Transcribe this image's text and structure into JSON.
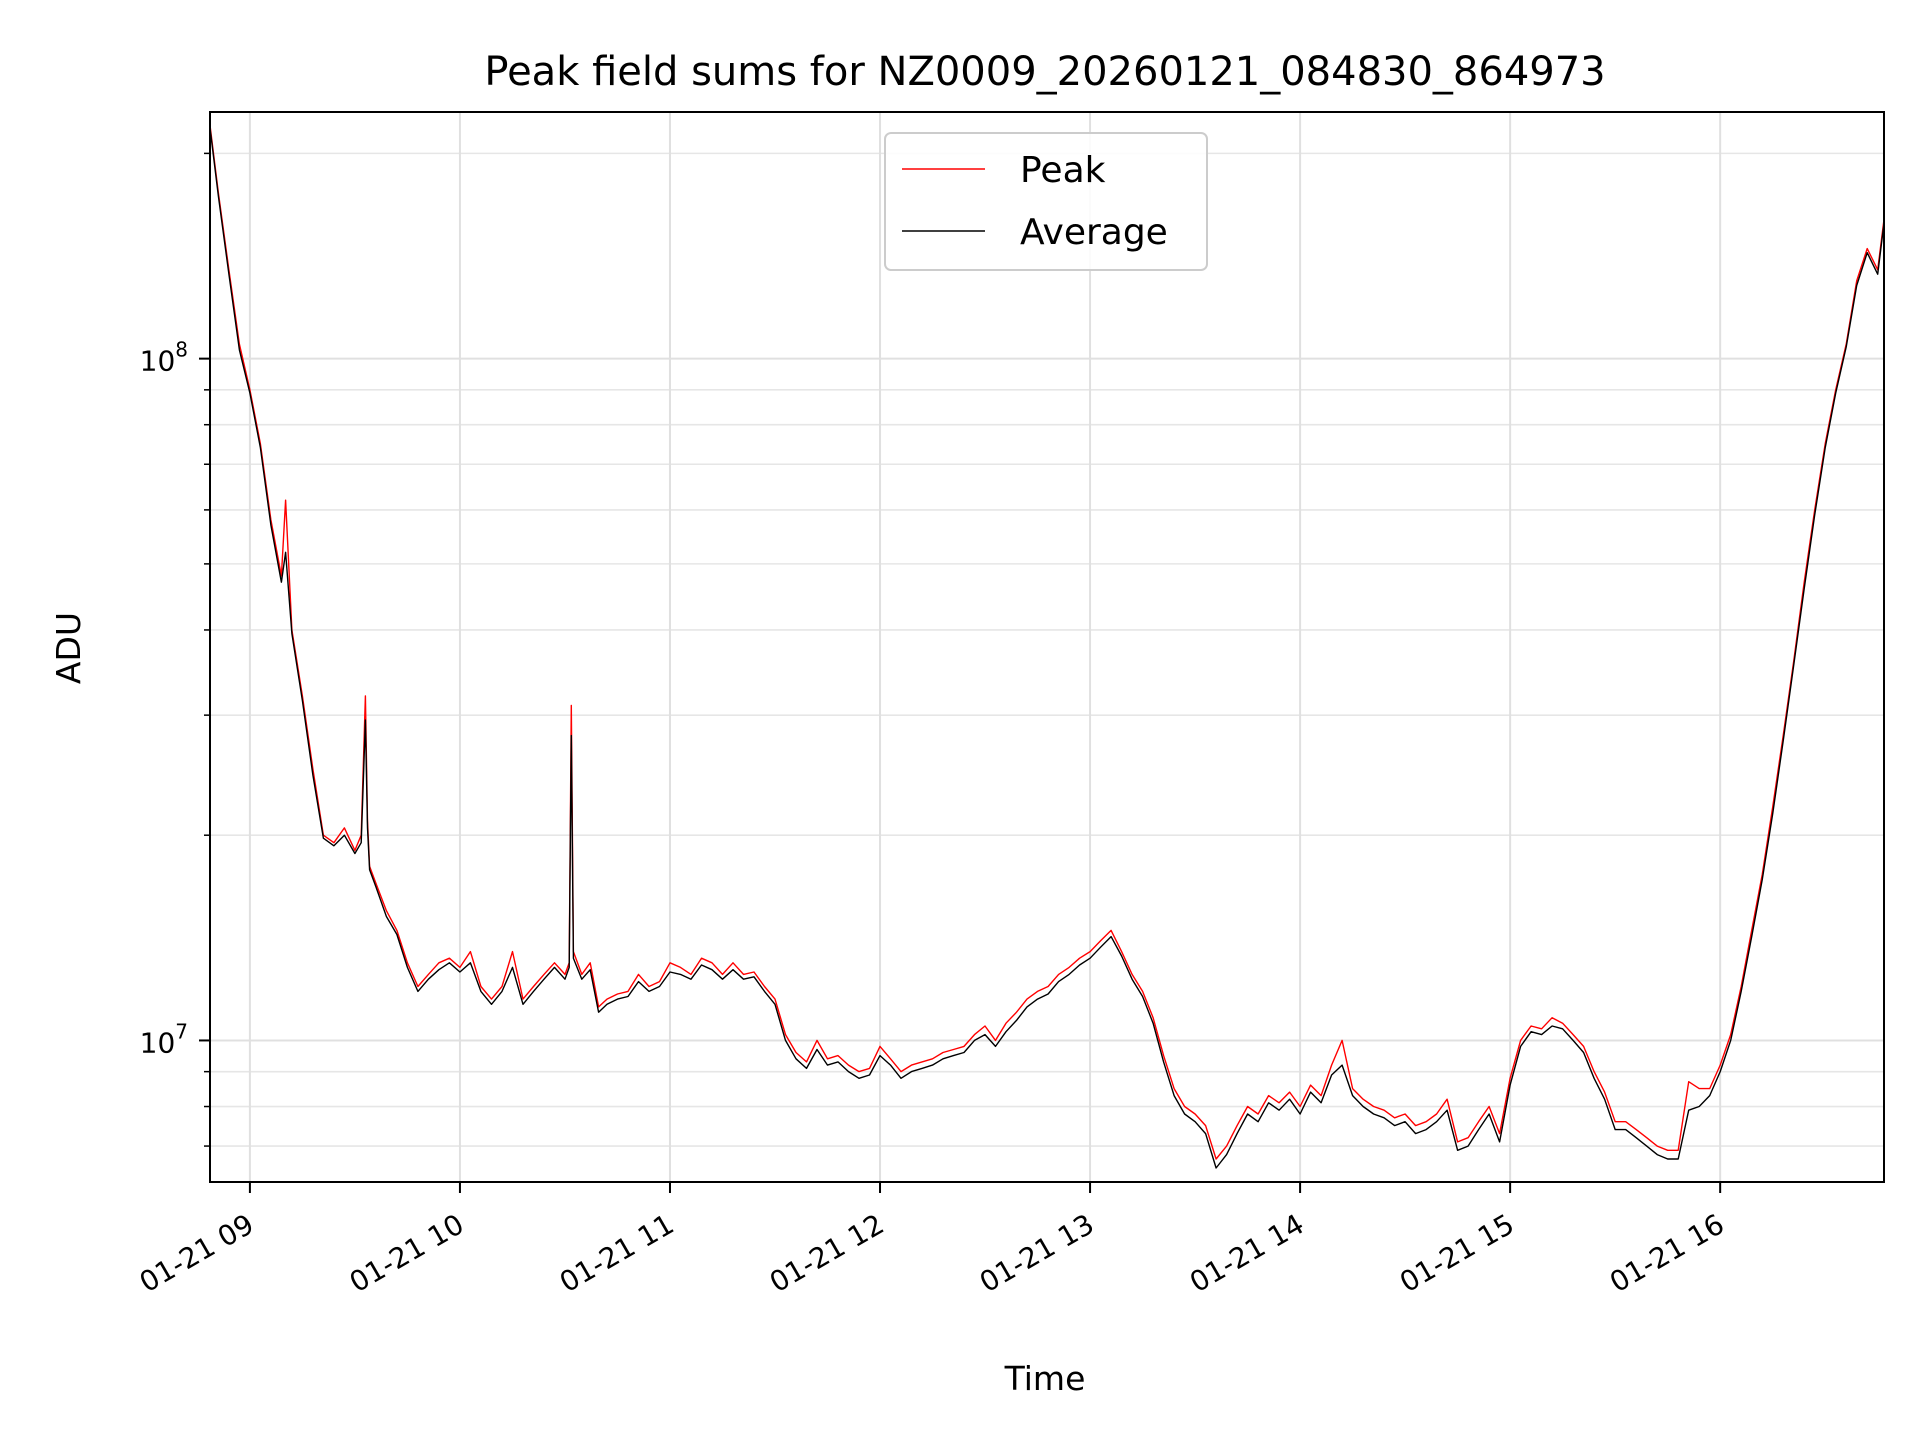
{
  "chart_data": {
    "type": "line",
    "title": "Peak field sums for NZ0009_20260121_084830_864973",
    "xlabel": "Time",
    "ylabel": "ADU",
    "x_unit": "hours",
    "xlim": [
      8.81,
      16.78
    ],
    "ylim": [
      6200000,
      230000000
    ],
    "y_scale": "log",
    "grid": true,
    "grid_minor": true,
    "legend_placement": "upper-center",
    "x_ticks": [
      {
        "value": 9,
        "label": "01-21 09"
      },
      {
        "value": 10,
        "label": "01-21 10"
      },
      {
        "value": 11,
        "label": "01-21 11"
      },
      {
        "value": 12,
        "label": "01-21 12"
      },
      {
        "value": 13,
        "label": "01-21 13"
      },
      {
        "value": 14,
        "label": "01-21 14"
      },
      {
        "value": 15,
        "label": "01-21 15"
      },
      {
        "value": 16,
        "label": "01-21 16"
      }
    ],
    "y_ticks": [
      {
        "value": 10000000,
        "base": "10",
        "exp": "7"
      },
      {
        "value": 100000000,
        "base": "10",
        "exp": "8"
      }
    ],
    "series": [
      {
        "name": "Peak",
        "color": "#ff0000",
        "x": [
          8.81,
          8.85,
          8.9,
          8.95,
          9.0,
          9.05,
          9.1,
          9.15,
          9.17,
          9.2,
          9.25,
          9.3,
          9.35,
          9.4,
          9.45,
          9.5,
          9.53,
          9.55,
          9.56,
          9.57,
          9.6,
          9.65,
          9.7,
          9.75,
          9.8,
          9.85,
          9.9,
          9.95,
          10.0,
          10.05,
          10.1,
          10.15,
          10.2,
          10.25,
          10.3,
          10.35,
          10.4,
          10.45,
          10.5,
          10.52,
          10.53,
          10.54,
          10.58,
          10.62,
          10.66,
          10.7,
          10.75,
          10.8,
          10.85,
          10.9,
          10.95,
          11.0,
          11.05,
          11.1,
          11.15,
          11.2,
          11.25,
          11.3,
          11.35,
          11.4,
          11.45,
          11.5,
          11.55,
          11.6,
          11.65,
          11.7,
          11.75,
          11.8,
          11.85,
          11.9,
          11.95,
          12.0,
          12.05,
          12.1,
          12.15,
          12.2,
          12.25,
          12.3,
          12.35,
          12.4,
          12.45,
          12.5,
          12.55,
          12.6,
          12.65,
          12.7,
          12.75,
          12.8,
          12.85,
          12.9,
          12.95,
          13.0,
          13.05,
          13.1,
          13.15,
          13.2,
          13.25,
          13.3,
          13.35,
          13.4,
          13.45,
          13.5,
          13.55,
          13.6,
          13.65,
          13.7,
          13.75,
          13.8,
          13.85,
          13.9,
          13.95,
          14.0,
          14.05,
          14.1,
          14.15,
          14.2,
          14.25,
          14.3,
          14.35,
          14.4,
          14.45,
          14.5,
          14.55,
          14.6,
          14.65,
          14.7,
          14.75,
          14.8,
          14.85,
          14.9,
          14.95,
          15.0,
          15.05,
          15.1,
          15.15,
          15.2,
          15.25,
          15.3,
          15.35,
          15.4,
          15.45,
          15.5,
          15.55,
          15.6,
          15.65,
          15.7,
          15.75,
          15.8,
          15.85,
          15.9,
          15.95,
          16.0,
          16.05,
          16.1,
          16.15,
          16.2,
          16.25,
          16.3,
          16.35,
          16.4,
          16.45,
          16.5,
          16.55,
          16.6,
          16.65,
          16.7,
          16.75,
          16.78
        ],
        "y": [
          220000000,
          175000000,
          135000000,
          105000000,
          90000000,
          75000000,
          58000000,
          48000000,
          62000000,
          40000000,
          32000000,
          25000000,
          20000000,
          19500000,
          20500000,
          19000000,
          20000000,
          32000000,
          21000000,
          18000000,
          17000000,
          15500000,
          14500000,
          13000000,
          12000000,
          12500000,
          13000000,
          13200000,
          12800000,
          13500000,
          12000000,
          11500000,
          12000000,
          13500000,
          11500000,
          12000000,
          12500000,
          13000000,
          12500000,
          13000000,
          31000000,
          13500000,
          12500000,
          13000000,
          11200000,
          11500000,
          11700000,
          11800000,
          12500000,
          12000000,
          12200000,
          13000000,
          12800000,
          12500000,
          13200000,
          13000000,
          12500000,
          13000000,
          12500000,
          12600000,
          12000000,
          11500000,
          10200000,
          9600000,
          9300000,
          10000000,
          9400000,
          9500000,
          9200000,
          9000000,
          9100000,
          9800000,
          9400000,
          9000000,
          9200000,
          9300000,
          9400000,
          9600000,
          9700000,
          9800000,
          10200000,
          10500000,
          10000000,
          10600000,
          11000000,
          11500000,
          11800000,
          12000000,
          12500000,
          12800000,
          13200000,
          13500000,
          14000000,
          14500000,
          13500000,
          12500000,
          11800000,
          10800000,
          9500000,
          8500000,
          8000000,
          7800000,
          7500000,
          6700000,
          7000000,
          7500000,
          8000000,
          7800000,
          8300000,
          8100000,
          8400000,
          8000000,
          8600000,
          8300000,
          9200000,
          10000000,
          8500000,
          8200000,
          8000000,
          7900000,
          7700000,
          7800000,
          7500000,
          7600000,
          7800000,
          8200000,
          7100000,
          7200000,
          7600000,
          8000000,
          7300000,
          8800000,
          10000000,
          10500000,
          10400000,
          10800000,
          10600000,
          10200000,
          9800000,
          9000000,
          8400000,
          7600000,
          7600000,
          7400000,
          7200000,
          7000000,
          6900000,
          6900000,
          8700000,
          8500000,
          8500000,
          9200000,
          10200000,
          12000000,
          14500000,
          17500000,
          22000000,
          28000000,
          36000000,
          47000000,
          60000000,
          75000000,
          90000000,
          105000000,
          130000000,
          145000000,
          135000000,
          160000000
        ]
      },
      {
        "name": "Average",
        "color": "#000000",
        "x": [
          8.81,
          8.85,
          8.9,
          8.95,
          9.0,
          9.05,
          9.1,
          9.15,
          9.17,
          9.2,
          9.25,
          9.3,
          9.35,
          9.4,
          9.45,
          9.5,
          9.53,
          9.55,
          9.56,
          9.57,
          9.6,
          9.65,
          9.7,
          9.75,
          9.8,
          9.85,
          9.9,
          9.95,
          10.0,
          10.05,
          10.1,
          10.15,
          10.2,
          10.25,
          10.3,
          10.35,
          10.4,
          10.45,
          10.5,
          10.52,
          10.53,
          10.54,
          10.58,
          10.62,
          10.66,
          10.7,
          10.75,
          10.8,
          10.85,
          10.9,
          10.95,
          11.0,
          11.05,
          11.1,
          11.15,
          11.2,
          11.25,
          11.3,
          11.35,
          11.4,
          11.45,
          11.5,
          11.55,
          11.6,
          11.65,
          11.7,
          11.75,
          11.8,
          11.85,
          11.9,
          11.95,
          12.0,
          12.05,
          12.1,
          12.15,
          12.2,
          12.25,
          12.3,
          12.35,
          12.4,
          12.45,
          12.5,
          12.55,
          12.6,
          12.65,
          12.7,
          12.75,
          12.8,
          12.85,
          12.9,
          12.95,
          13.0,
          13.05,
          13.1,
          13.15,
          13.2,
          13.25,
          13.3,
          13.35,
          13.4,
          13.45,
          13.5,
          13.55,
          13.6,
          13.65,
          13.7,
          13.75,
          13.8,
          13.85,
          13.9,
          13.95,
          14.0,
          14.05,
          14.1,
          14.15,
          14.2,
          14.25,
          14.3,
          14.35,
          14.4,
          14.45,
          14.5,
          14.55,
          14.6,
          14.65,
          14.7,
          14.75,
          14.8,
          14.85,
          14.9,
          14.95,
          15.0,
          15.05,
          15.1,
          15.15,
          15.2,
          15.25,
          15.3,
          15.35,
          15.4,
          15.45,
          15.5,
          15.55,
          15.6,
          15.65,
          15.7,
          15.75,
          15.8,
          15.85,
          15.9,
          15.95,
          16.0,
          16.05,
          16.1,
          16.15,
          16.2,
          16.25,
          16.3,
          16.35,
          16.4,
          16.45,
          16.5,
          16.55,
          16.6,
          16.65,
          16.7,
          16.75,
          16.78
        ],
        "y": [
          218000000,
          173000000,
          133000000,
          103000000,
          89000000,
          74000000,
          57000000,
          47000000,
          52000000,
          39500000,
          31500000,
          24500000,
          19800000,
          19300000,
          20000000,
          18800000,
          19500000,
          29500000,
          20500000,
          17800000,
          16800000,
          15200000,
          14300000,
          12800000,
          11800000,
          12300000,
          12700000,
          13000000,
          12600000,
          13000000,
          11800000,
          11300000,
          11800000,
          12800000,
          11300000,
          11800000,
          12300000,
          12800000,
          12300000,
          12800000,
          28000000,
          13200000,
          12300000,
          12700000,
          11000000,
          11300000,
          11500000,
          11600000,
          12200000,
          11800000,
          12000000,
          12600000,
          12500000,
          12300000,
          12900000,
          12700000,
          12300000,
          12700000,
          12300000,
          12400000,
          11800000,
          11300000,
          10000000,
          9400000,
          9100000,
          9700000,
          9200000,
          9300000,
          9000000,
          8800000,
          8900000,
          9500000,
          9200000,
          8800000,
          9000000,
          9100000,
          9200000,
          9400000,
          9500000,
          9600000,
          10000000,
          10200000,
          9800000,
          10300000,
          10700000,
          11200000,
          11500000,
          11700000,
          12200000,
          12500000,
          12900000,
          13200000,
          13700000,
          14200000,
          13300000,
          12300000,
          11600000,
          10600000,
          9300000,
          8300000,
          7800000,
          7600000,
          7300000,
          6500000,
          6800000,
          7300000,
          7800000,
          7600000,
          8100000,
          7900000,
          8200000,
          7800000,
          8400000,
          8100000,
          8900000,
          9200000,
          8300000,
          8000000,
          7800000,
          7700000,
          7500000,
          7600000,
          7300000,
          7400000,
          7600000,
          7900000,
          6900000,
          7000000,
          7400000,
          7800000,
          7100000,
          8600000,
          9800000,
          10300000,
          10200000,
          10500000,
          10400000,
          10000000,
          9600000,
          8800000,
          8200000,
          7400000,
          7400000,
          7200000,
          7000000,
          6800000,
          6700000,
          6700000,
          7900000,
          8000000,
          8300000,
          9000000,
          10000000,
          11800000,
          14200000,
          17200000,
          21500000,
          27500000,
          35500000,
          46000000,
          59000000,
          74000000,
          89000000,
          104000000,
          128000000,
          143000000,
          133000000,
          158000000
        ]
      }
    ]
  }
}
